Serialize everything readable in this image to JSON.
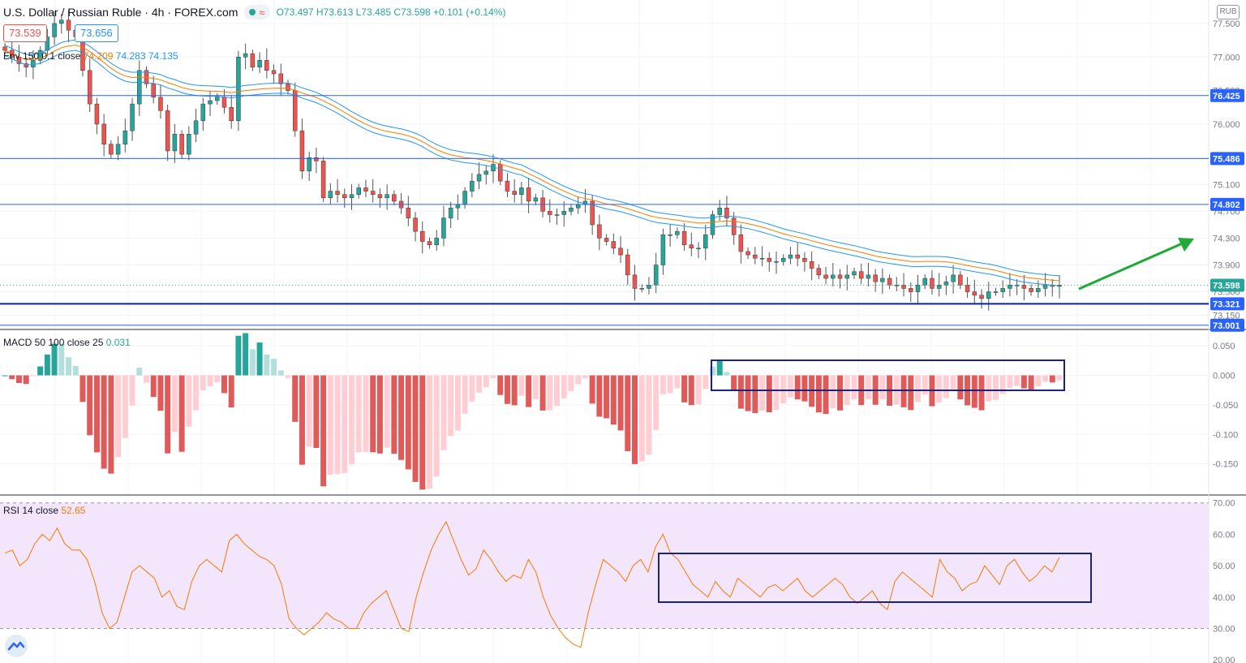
{
  "header": {
    "symbol": "U.S. Dollar / Russian Ruble · 4h · FOREX.com",
    "ohlc": "O73.497 H73.613 L73.485 C73.598 +0.101 (+0.14%)",
    "bid": "73.539",
    "ask": "73.656",
    "currency": "RUB",
    "envelope_label": "Env 150 0.1 close",
    "envelope_values": [
      "74.209",
      "74.283",
      "74.135"
    ]
  },
  "macd_panel": {
    "label": "MACD 50 100 close 25",
    "value": "0.031"
  },
  "rsi_panel": {
    "label": "RSI 14 close",
    "value": "52.65"
  },
  "colors": {
    "up": "#26a69a",
    "down": "#ef5350",
    "hist_up_strong": "#26a69a",
    "hist_up_weak": "#b2dfdb",
    "hist_down_strong": "#e05a5a",
    "hist_down_weak": "#ffcdd2",
    "env_basis": "#f57c00",
    "env_band": "#2196f3",
    "level_line": "#2962ff",
    "box": "#1a237e",
    "rsi_line": "#f57c00",
    "rsi_fill": "#f3e5fb",
    "arrow": "#1faa37"
  },
  "chart_data": [
    {
      "type": "candlestick",
      "title": "U.S. Dollar / Russian Ruble · 4h · FOREX.com",
      "y_ticks": [
        "77.500",
        "77.000",
        "76.500",
        "76.000",
        "75.500",
        "75.100",
        "74.700",
        "74.300",
        "73.900",
        "73.500",
        "73.150"
      ],
      "ylim": [
        72.95,
        77.85
      ],
      "horizontal_levels": [
        "76.425",
        "75.486",
        "74.802",
        "73.321",
        "73.001"
      ],
      "last_price": "73.598",
      "candles_close": [
        77.1,
        77.0,
        76.9,
        76.85,
        76.95,
        77.1,
        77.3,
        77.5,
        77.55,
        77.4,
        77.3,
        76.8,
        76.3,
        76.0,
        75.7,
        75.55,
        75.7,
        75.9,
        76.3,
        76.8,
        76.6,
        76.4,
        76.2,
        75.6,
        75.85,
        75.55,
        75.85,
        76.05,
        76.3,
        76.35,
        76.4,
        76.25,
        76.05,
        77.0,
        77.05,
        76.85,
        76.95,
        76.8,
        76.75,
        76.6,
        76.5,
        75.9,
        75.3,
        75.5,
        75.45,
        74.9,
        75.0,
        74.95,
        74.9,
        74.95,
        75.05,
        75.0,
        74.95,
        74.9,
        74.95,
        74.85,
        74.75,
        74.6,
        74.4,
        74.25,
        74.2,
        74.3,
        74.6,
        74.75,
        74.8,
        75.0,
        75.15,
        75.25,
        75.3,
        75.4,
        75.15,
        75.0,
        74.95,
        75.05,
        74.85,
        74.9,
        74.7,
        74.65,
        74.65,
        74.7,
        74.75,
        74.8,
        74.85,
        74.5,
        74.3,
        74.25,
        74.15,
        74.05,
        73.75,
        73.55,
        73.55,
        73.6,
        73.9,
        74.35,
        74.35,
        74.4,
        74.2,
        74.15,
        74.15,
        74.35,
        74.65,
        74.75,
        74.6,
        74.35,
        74.1,
        74.05,
        74.0,
        74.0,
        73.95,
        73.95,
        74.0,
        74.05,
        74.0,
        73.95,
        73.85,
        73.75,
        73.7,
        73.75,
        73.7,
        73.75,
        73.8,
        73.7,
        73.75,
        73.65,
        73.7,
        73.6,
        73.6,
        73.55,
        73.5,
        73.6,
        73.7,
        73.55,
        73.6,
        73.65,
        73.75,
        73.6,
        73.5,
        73.45,
        73.4,
        73.5,
        73.5,
        73.55,
        73.6,
        73.6,
        73.55,
        73.5,
        73.55,
        73.6,
        73.58,
        73.6
      ]
    },
    {
      "type": "bar",
      "title": "MACD 50 100 close 25",
      "y_ticks": [
        "0.050",
        "0.000",
        "-0.050",
        "-0.100",
        "-0.150"
      ],
      "ylim": [
        -0.2,
        0.075
      ]
    },
    {
      "type": "line",
      "title": "RSI 14 close",
      "y_ticks": [
        "70.00",
        "60.00",
        "50.00",
        "40.00",
        "30.00",
        "20.00"
      ],
      "ylim": [
        19,
        72
      ],
      "values": [
        54,
        55,
        50,
        52,
        57,
        60,
        58,
        62,
        57,
        55,
        55,
        52,
        45,
        35,
        30,
        32,
        40,
        48,
        50,
        48,
        46,
        40,
        42,
        37,
        36,
        45,
        50,
        52,
        50,
        48,
        58,
        60,
        57,
        55,
        53,
        52,
        50,
        44,
        33,
        30,
        28,
        30,
        32,
        35,
        33,
        32,
        30,
        30,
        35,
        38,
        40,
        42,
        36,
        30,
        29,
        40,
        48,
        55,
        60,
        64,
        58,
        52,
        47,
        49,
        55,
        52,
        48,
        45,
        47,
        46,
        52,
        48,
        40,
        34,
        30,
        27,
        25,
        24,
        35,
        44,
        52,
        50,
        48,
        45,
        50,
        52,
        48,
        56,
        60,
        54,
        52,
        48,
        44,
        42,
        40,
        45,
        42,
        40,
        46,
        44,
        42,
        40,
        43,
        44,
        42,
        44,
        46,
        42,
        40,
        42,
        44,
        46,
        44,
        40,
        38,
        40,
        42,
        38,
        36,
        45,
        48,
        46,
        44,
        42,
        40,
        52,
        48,
        46,
        42,
        44,
        45,
        50,
        47,
        44,
        50,
        52,
        48,
        45,
        47,
        50,
        48,
        52.65
      ]
    }
  ]
}
